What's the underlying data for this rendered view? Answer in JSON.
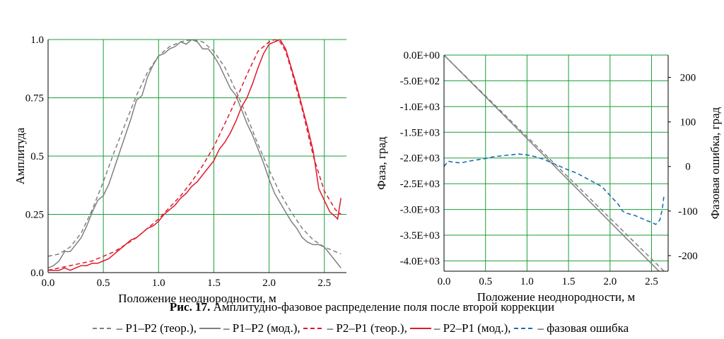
{
  "chart_data": [
    {
      "type": "line",
      "xlabel": "Положение неоднородности, м",
      "ylabel": "Амплитуда",
      "xlim": [
        0,
        2.7
      ],
      "ylim": [
        0,
        1.0
      ],
      "xticks": [
        "0.0",
        "0.5",
        "1.0",
        "1.5",
        "2.0",
        "2.5"
      ],
      "xtick_values": [
        0,
        0.5,
        1.0,
        1.5,
        2.0,
        2.5
      ],
      "yticks": [
        "0.0",
        "0.25",
        "0.5",
        "0.75",
        "1.0"
      ],
      "ytick_values": [
        0,
        0.25,
        0.5,
        0.75,
        1.0
      ],
      "grid": true,
      "grid_color": "#1a9e3a",
      "series": [
        {
          "name": "P1–P2 (теор.)",
          "color": "#808080",
          "style": "dashed",
          "x": [
            0,
            0.1,
            0.2,
            0.3,
            0.4,
            0.5,
            0.6,
            0.7,
            0.8,
            0.9,
            1.0,
            1.1,
            1.2,
            1.3,
            1.4,
            1.5,
            1.6,
            1.7,
            1.8,
            1.9,
            2.0,
            2.1,
            2.2,
            2.3,
            2.4,
            2.5,
            2.6,
            2.65
          ],
          "y": [
            0.07,
            0.08,
            0.11,
            0.17,
            0.27,
            0.39,
            0.52,
            0.64,
            0.76,
            0.86,
            0.93,
            0.97,
            0.99,
            1.0,
            0.99,
            0.95,
            0.88,
            0.78,
            0.67,
            0.55,
            0.44,
            0.34,
            0.26,
            0.19,
            0.14,
            0.11,
            0.09,
            0.08
          ]
        },
        {
          "name": "P1–P2 (мод.)",
          "color": "#808080",
          "style": "solid",
          "x": [
            0,
            0.05,
            0.1,
            0.15,
            0.2,
            0.25,
            0.3,
            0.35,
            0.4,
            0.45,
            0.5,
            0.55,
            0.6,
            0.65,
            0.7,
            0.75,
            0.8,
            0.85,
            0.9,
            0.95,
            1.0,
            1.05,
            1.1,
            1.15,
            1.2,
            1.25,
            1.3,
            1.35,
            1.4,
            1.45,
            1.5,
            1.55,
            1.6,
            1.65,
            1.7,
            1.75,
            1.8,
            1.85,
            1.9,
            1.95,
            2.0,
            2.05,
            2.1,
            2.15,
            2.2,
            2.25,
            2.3,
            2.35,
            2.4,
            2.45,
            2.5,
            2.55,
            2.6,
            2.65
          ],
          "y": [
            0.02,
            0.03,
            0.05,
            0.09,
            0.09,
            0.12,
            0.15,
            0.2,
            0.26,
            0.31,
            0.33,
            0.38,
            0.45,
            0.52,
            0.59,
            0.66,
            0.74,
            0.76,
            0.84,
            0.89,
            0.93,
            0.94,
            0.96,
            0.97,
            0.99,
            0.98,
            1.0,
            0.99,
            0.96,
            0.96,
            0.93,
            0.89,
            0.84,
            0.79,
            0.76,
            0.7,
            0.64,
            0.59,
            0.53,
            0.47,
            0.4,
            0.34,
            0.3,
            0.26,
            0.22,
            0.19,
            0.15,
            0.13,
            0.12,
            0.12,
            0.11,
            0.08,
            0.05,
            0.02
          ]
        },
        {
          "name": "P2–P1 (теор.)",
          "color": "#e0182d",
          "style": "dashed",
          "x": [
            0,
            0.1,
            0.2,
            0.3,
            0.4,
            0.5,
            0.6,
            0.7,
            0.8,
            0.9,
            1.0,
            1.1,
            1.2,
            1.3,
            1.4,
            1.5,
            1.6,
            1.7,
            1.8,
            1.9,
            2.0,
            2.05,
            2.1,
            2.15,
            2.2,
            2.3,
            2.4,
            2.5,
            2.6,
            2.65
          ],
          "y": [
            0.01,
            0.02,
            0.03,
            0.04,
            0.05,
            0.07,
            0.09,
            0.12,
            0.15,
            0.19,
            0.23,
            0.28,
            0.33,
            0.39,
            0.46,
            0.54,
            0.64,
            0.74,
            0.85,
            0.95,
            0.99,
            1.0,
            0.99,
            0.95,
            0.87,
            0.7,
            0.5,
            0.35,
            0.27,
            0.25
          ]
        },
        {
          "name": "P2–P1 (мод.)",
          "color": "#e0182d",
          "style": "solid",
          "x": [
            0,
            0.05,
            0.1,
            0.15,
            0.2,
            0.25,
            0.3,
            0.35,
            0.4,
            0.45,
            0.5,
            0.55,
            0.6,
            0.65,
            0.7,
            0.75,
            0.8,
            0.85,
            0.9,
            0.95,
            1.0,
            1.05,
            1.1,
            1.15,
            1.2,
            1.25,
            1.3,
            1.35,
            1.4,
            1.45,
            1.5,
            1.55,
            1.6,
            1.65,
            1.7,
            1.75,
            1.8,
            1.85,
            1.9,
            1.95,
            2.0,
            2.05,
            2.1,
            2.15,
            2.2,
            2.25,
            2.3,
            2.35,
            2.4,
            2.45,
            2.5,
            2.55,
            2.6,
            2.62,
            2.65
          ],
          "y": [
            0.01,
            0.01,
            0.01,
            0.02,
            0.01,
            0.02,
            0.03,
            0.03,
            0.04,
            0.04,
            0.05,
            0.06,
            0.08,
            0.1,
            0.12,
            0.14,
            0.15,
            0.17,
            0.19,
            0.2,
            0.22,
            0.25,
            0.27,
            0.29,
            0.32,
            0.34,
            0.37,
            0.39,
            0.42,
            0.45,
            0.48,
            0.53,
            0.56,
            0.6,
            0.65,
            0.71,
            0.75,
            0.81,
            0.88,
            0.94,
            0.98,
            0.99,
            1.0,
            0.96,
            0.88,
            0.8,
            0.71,
            0.62,
            0.52,
            0.36,
            0.31,
            0.26,
            0.24,
            0.23,
            0.32
          ]
        }
      ]
    },
    {
      "type": "line",
      "xlabel": "Положение неоднородности, м",
      "ylabel": "Фаза, град",
      "ylabel_right": "Фазовая ошибка, град",
      "xlim": [
        0,
        2.7
      ],
      "ylim": [
        -4200,
        0
      ],
      "ylim_right": [
        -235,
        250
      ],
      "xticks": [
        "0.0",
        "0.5",
        "1.0",
        "1.5",
        "2.0",
        "2.5"
      ],
      "xtick_values": [
        0,
        0.5,
        1.0,
        1.5,
        2.0,
        2.5
      ],
      "yticks": [
        "0.0E+00",
        "-5.0E+02",
        "-1.0E+03",
        "-1.5E+03",
        "-2.0E+03",
        "-2.5E+03",
        "-3.0E+03",
        "-3.5E+03",
        "-4.0E+03"
      ],
      "ytick_values": [
        0,
        -500,
        -1000,
        -1500,
        -2000,
        -2500,
        -3000,
        -3500,
        -4000
      ],
      "yticks_right": [
        "200",
        "100",
        "0",
        "-100",
        "-200"
      ],
      "ytick_values_right": [
        200,
        100,
        0,
        -100,
        -200
      ],
      "grid": true,
      "grid_color": "#1a9e3a",
      "series": [
        {
          "name": "P1–P2 (теор.)",
          "color": "#808080",
          "style": "dashed",
          "axis": "left",
          "x": [
            0,
            2.65
          ],
          "y": [
            0,
            -4200
          ]
        },
        {
          "name": "P1–P2 (мод.)",
          "color": "#808080",
          "style": "solid",
          "axis": "left",
          "x": [
            0,
            2.62
          ],
          "y": [
            0,
            -4250
          ]
        },
        {
          "name": "фазовая ошибка",
          "color": "#1a6fb0",
          "style": "dashed",
          "axis": "right",
          "x": [
            0,
            0.05,
            0.1,
            0.2,
            0.3,
            0.4,
            0.5,
            0.6,
            0.7,
            0.8,
            0.9,
            1.0,
            1.1,
            1.2,
            1.3,
            1.4,
            1.5,
            1.6,
            1.7,
            1.8,
            1.9,
            1.95,
            2.0,
            2.05,
            2.1,
            2.15,
            2.2,
            2.3,
            2.4,
            2.45,
            2.5,
            2.55,
            2.6,
            2.63,
            2.65
          ],
          "y": [
            0,
            12,
            10,
            8,
            12,
            15,
            18,
            22,
            24,
            26,
            28,
            26,
            22,
            16,
            8,
            0,
            -8,
            -15,
            -25,
            -35,
            -45,
            -55,
            -65,
            -75,
            -85,
            -100,
            -105,
            -110,
            -118,
            -122,
            -125,
            -130,
            -120,
            -95,
            -65
          ]
        }
      ]
    }
  ],
  "caption": {
    "label": "Рис. 17.",
    "text": " Амплитудно-фазовое распределение поля после второй коррекции"
  },
  "legend": [
    {
      "label": "P1–P2 (теор.),",
      "color": "#808080",
      "style": "dashed"
    },
    {
      "label": "P1–P2 (мод.),",
      "color": "#808080",
      "style": "solid"
    },
    {
      "label": "P2–P1 (теор.),",
      "color": "#e0182d",
      "style": "dashed"
    },
    {
      "label": "P2–P1 (мод.),",
      "color": "#e0182d",
      "style": "solid"
    },
    {
      "label": "фазовая ошибка",
      "color": "#1a6fb0",
      "style": "dashed"
    }
  ]
}
